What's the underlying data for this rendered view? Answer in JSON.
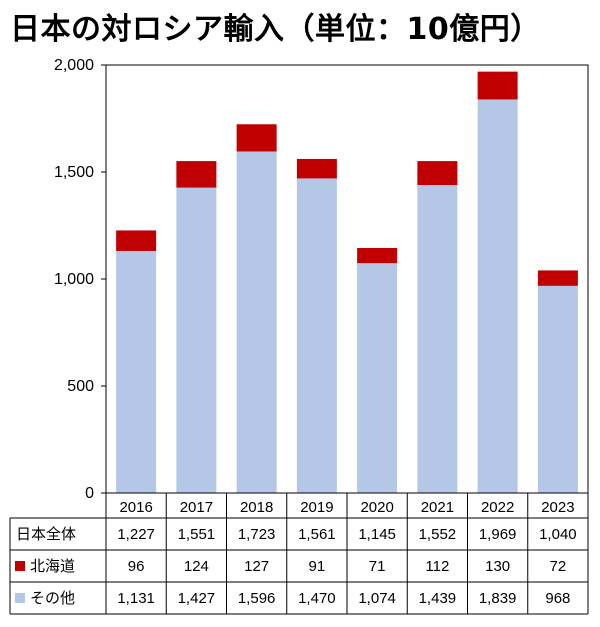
{
  "title": "日本の対ロシア輸入（単位：10億円）",
  "colors": {
    "hokkaido": "#c00000",
    "other": "#b4c7e7",
    "axis": "#000000"
  },
  "chart_data": {
    "type": "bar",
    "stacked": true,
    "categories": [
      "2016",
      "2017",
      "2018",
      "2019",
      "2020",
      "2021",
      "2022",
      "2023"
    ],
    "ylim": [
      0,
      2000
    ],
    "yticks": [
      "0",
      "500",
      "1,000",
      "1,500",
      "2,000"
    ],
    "grid": false,
    "series": [
      {
        "name": "その他",
        "values": [
          1131,
          1427,
          1596,
          1470,
          1074,
          1439,
          1839,
          968
        ]
      },
      {
        "name": "北海道",
        "values": [
          96,
          124,
          127,
          91,
          71,
          112,
          130,
          72
        ]
      }
    ],
    "table": {
      "rows": [
        {
          "label": "日本全体",
          "cells": [
            "1,227",
            "1,551",
            "1,723",
            "1,561",
            "1,145",
            "1,552",
            "1,969",
            "1,040"
          ]
        },
        {
          "label": "北海道",
          "cells": [
            "96",
            "124",
            "127",
            "91",
            "71",
            "112",
            "130",
            "72"
          ]
        },
        {
          "label": "その他",
          "cells": [
            "1,131",
            "1,427",
            "1,596",
            "1,470",
            "1,074",
            "1,439",
            "1,839",
            "968"
          ]
        }
      ]
    }
  }
}
